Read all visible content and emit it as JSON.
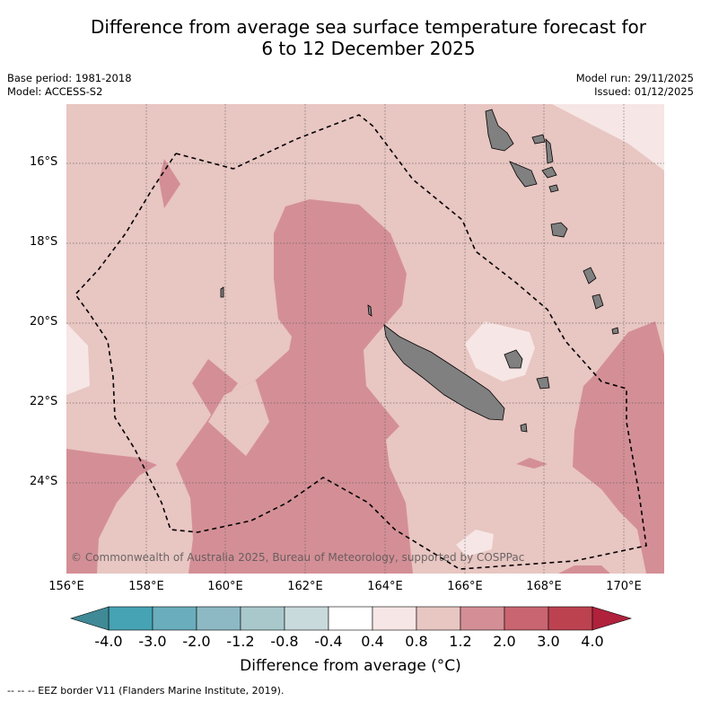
{
  "title_line1": "Difference from average sea surface temperature forecast for",
  "title_line2": "6 to 12 December 2025",
  "base_period": "Base period: 1981-2018",
  "model": "Model: ACCESS-S2",
  "model_run": "Model run: 29/11/2025",
  "issued": "Issued: 01/12/2025",
  "copyright": "© Commonwealth of Australia 2025, Bureau of Meteorology, supported by COSPPac",
  "lon_labels": [
    "156°E",
    "158°E",
    "160°E",
    "162°E",
    "164°E",
    "166°E",
    "168°E",
    "170°E"
  ],
  "lat_labels": [
    "16°S",
    "18°S",
    "20°S",
    "22°S",
    "24°S"
  ],
  "colorbar": {
    "title": "Difference from average (°C)",
    "tick_labels": [
      "-4.0",
      "-3.0",
      "-2.0",
      "-1.2",
      "-0.8",
      "-0.4",
      "0.4",
      "0.8",
      "1.2",
      "2.0",
      "3.0",
      "4.0"
    ],
    "colors": [
      "#46a3b3",
      "#6aadbc",
      "#8db9c4",
      "#a8c8cc",
      "#c9dadc",
      "#ffffff",
      "#f6e6e5",
      "#e8c6c2",
      "#d48f96",
      "#c96570",
      "#bc4250"
    ],
    "under_color": "#3f8a96",
    "over_color": "#b0213c"
  },
  "colors": {
    "land": "#808080",
    "bg_anomaly": "#e8c6c2",
    "warm_anomaly": "#d48f96",
    "light_anomaly": "#f6e6e5"
  },
  "footer": "--  --  -- EEZ border V11 (Flanders Marine Institute, 2019)."
}
